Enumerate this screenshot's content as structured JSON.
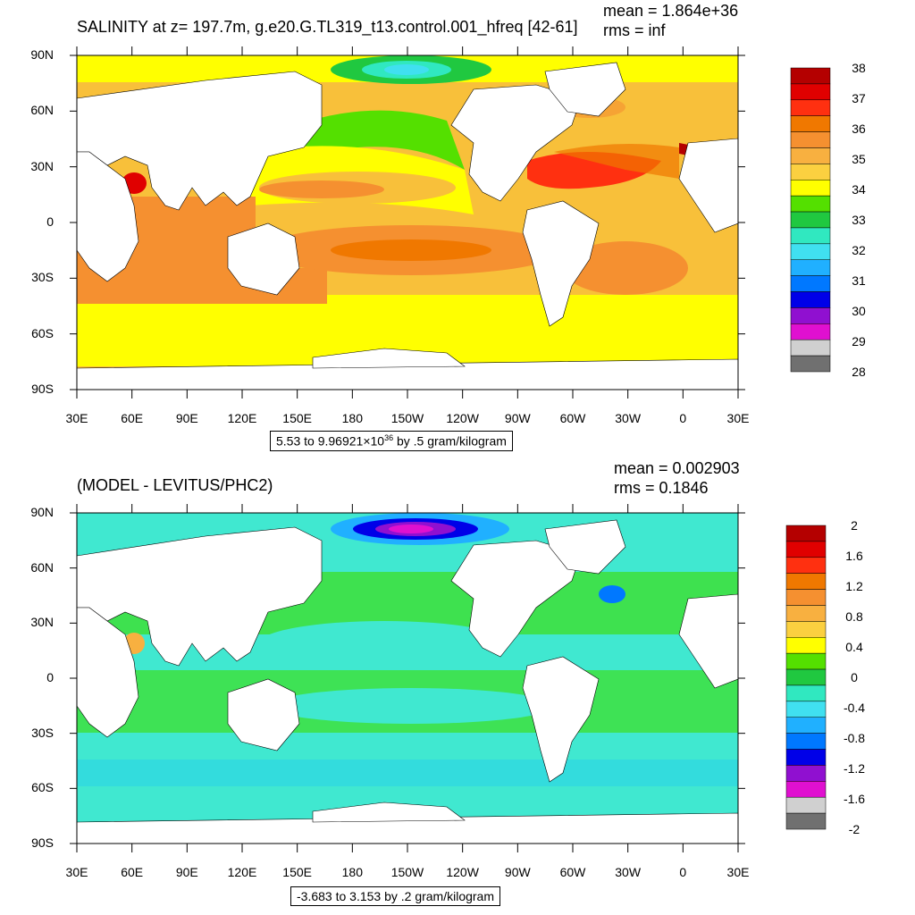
{
  "panels": [
    {
      "title": "SALINITY at z= 197.7m, g.e20.G.TL319_t13.control.001_hfreq [42-61]",
      "mean_text": "mean = 1.864e+36",
      "rms_text": "rms = inf",
      "range_prefix": "5.53 to 9.96921",
      "range_times": "×10",
      "range_exp": "36",
      "range_suffix": " by .5 gram/kilogram",
      "colorbar_labels": [
        "38",
        "37",
        "36",
        "35",
        "34",
        "33",
        "32",
        "31",
        "30",
        "29",
        "28"
      ],
      "colorbar_colors": [
        "#b40000",
        "#e00000",
        "#ff3010",
        "#f07800",
        "#f59030",
        "#f8b040",
        "#fbd040",
        "#ffff00",
        "#54e000",
        "#20c840",
        "#30e8c0",
        "#40e0f0",
        "#20b0ff",
        "#0078ff",
        "#0000e8",
        "#9010d0",
        "#e010d0",
        "#d0d0d0",
        "#707070"
      ]
    },
    {
      "title": "(MODEL - LEVITUS/PHC2)",
      "mean_text": "mean = 0.002903",
      "rms_text": "rms = 0.1846",
      "range_text": "-3.683 to 3.153 by .2 gram/kilogram",
      "colorbar_labels": [
        "2",
        "1.6",
        "1.2",
        "0.8",
        "0.4",
        "0",
        "-0.4",
        "-0.8",
        "-1.2",
        "-1.6",
        "-2"
      ],
      "colorbar_colors": [
        "#b40000",
        "#e00000",
        "#ff3010",
        "#f07800",
        "#f59030",
        "#f8b040",
        "#fbd040",
        "#ffff00",
        "#54e000",
        "#20c840",
        "#30e8c0",
        "#40e0f0",
        "#20b0ff",
        "#0078ff",
        "#0000e8",
        "#9010d0",
        "#e010d0",
        "#d0d0d0",
        "#707070"
      ]
    }
  ],
  "lat_labels": [
    "90N",
    "60N",
    "30N",
    "0",
    "30S",
    "60S",
    "90S"
  ],
  "lon_labels": [
    "30E",
    "60E",
    "90E",
    "120E",
    "150E",
    "180",
    "150W",
    "120W",
    "90W",
    "60W",
    "30W",
    "0",
    "30E"
  ],
  "colors": {
    "land": "#ffffff",
    "top_panel_ocean": "#f8c03a",
    "top_panel_south": "#ffff00",
    "bottom_panel_ocean": "#40e8d0",
    "bottom_panel_green": "#3ee040",
    "outline": "#000000"
  }
}
